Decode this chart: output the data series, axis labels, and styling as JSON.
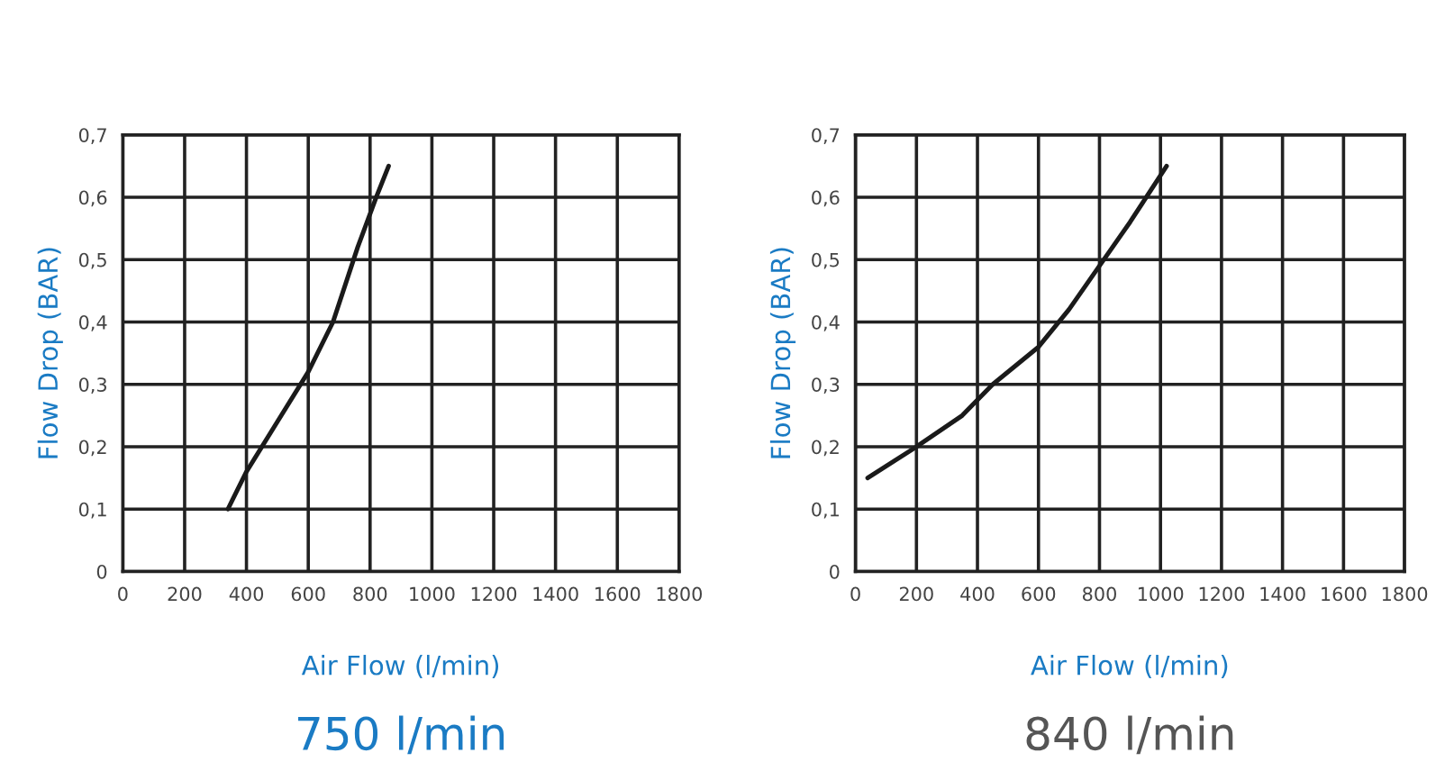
{
  "chart_data": [
    {
      "type": "line",
      "xlabel": "Air Flow (l/min)",
      "ylabel": "Flow Drop (BAR)",
      "annotations": [
        "750 l/min"
      ],
      "series": [
        {
          "color": "#1a1a1a",
          "x": [
            340,
            400,
            500,
            600,
            680,
            760,
            820,
            860
          ],
          "values": [
            0.1,
            0.16,
            0.24,
            0.32,
            0.4,
            0.52,
            0.6,
            0.65
          ]
        }
      ],
      "xlim": [
        0,
        1800
      ],
      "xticks": [
        0,
        200,
        400,
        600,
        800,
        1000,
        1200,
        1400,
        1600,
        1800
      ],
      "ylim": [
        0,
        0.7
      ],
      "yticks": [
        0,
        {
          "value": 0.1,
          "label": "0,1"
        },
        {
          "value": 0.2,
          "label": "0,2"
        },
        {
          "value": 0.3,
          "label": "0,3"
        },
        {
          "value": 0.4,
          "label": "0,4"
        },
        {
          "value": 0.5,
          "label": "0,5"
        },
        {
          "value": 0.6,
          "label": "0,6"
        },
        {
          "value": 0.7,
          "label": "0,7"
        }
      ],
      "grid": true,
      "marker": "none",
      "line_style": "solid"
    },
    {
      "type": "line",
      "xlabel": "Air Flow (l/min)",
      "ylabel": "Flow Drop (BAR)",
      "annotations": [
        "840 l/min"
      ],
      "series": [
        {
          "color": "#1a1a1a",
          "x": [
            40,
            200,
            350,
            450,
            600,
            700,
            800,
            900,
            1020
          ],
          "values": [
            0.15,
            0.2,
            0.25,
            0.3,
            0.36,
            0.42,
            0.49,
            0.56,
            0.65
          ]
        }
      ],
      "xlim": [
        0,
        1800
      ],
      "xticks": [
        0,
        200,
        400,
        600,
        800,
        1000,
        1200,
        1400,
        1600,
        1800
      ],
      "ylim": [
        0,
        0.7
      ],
      "yticks": [
        0,
        {
          "value": 0.1,
          "label": "0,1"
        },
        {
          "value": 0.2,
          "label": "0,2"
        },
        {
          "value": 0.3,
          "label": "0,3"
        },
        {
          "value": 0.4,
          "label": "0,4"
        },
        {
          "value": 0.5,
          "label": "0,5"
        },
        {
          "value": 0.6,
          "label": "0,6"
        },
        {
          "value": 0.7,
          "label": "0,7"
        }
      ],
      "grid": true,
      "marker": "none",
      "line_style": "solid"
    }
  ]
}
